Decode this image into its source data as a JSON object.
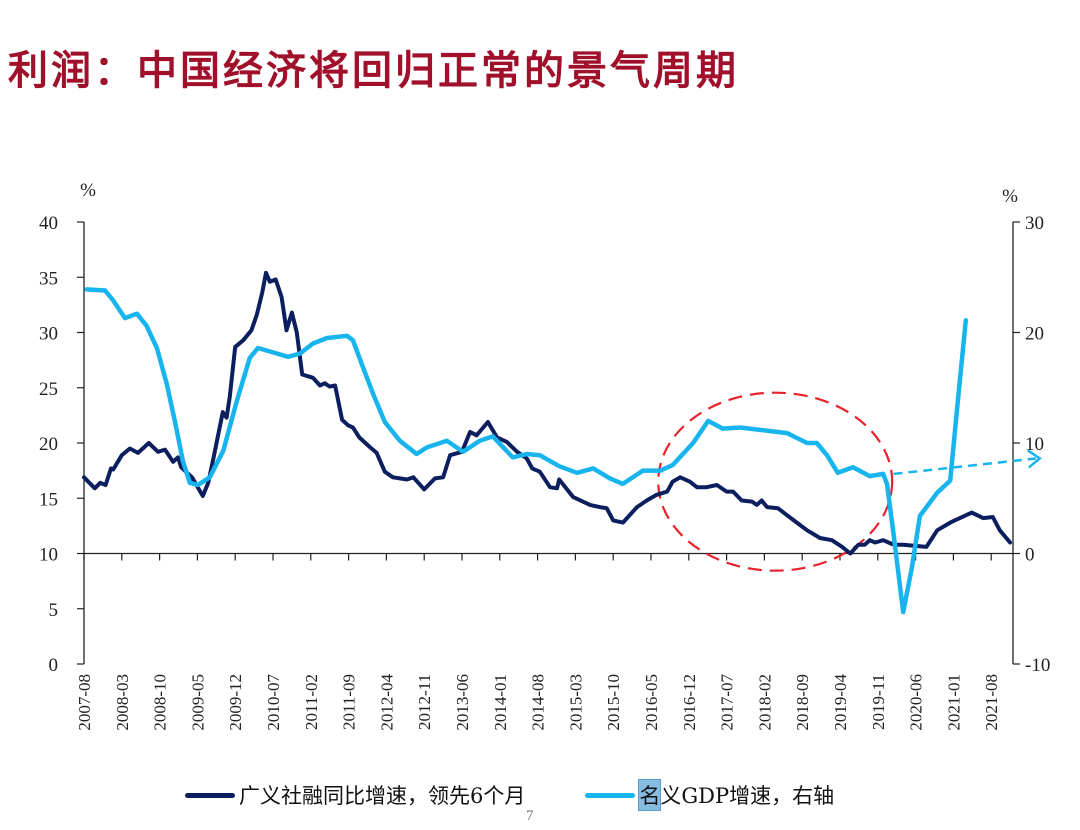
{
  "title": "利润：中国经济将回归正常的景气周期",
  "page_number": "7",
  "chart_data": {
    "type": "line",
    "title": "利润：中国经济将回归正常的景气周期",
    "x_unit": "months since 2007-08",
    "x_tick_labels": [
      "2007-08",
      "2008-03",
      "2008-10",
      "2009-05",
      "2009-12",
      "2010-07",
      "2011-02",
      "2011-09",
      "2012-04",
      "2012-11",
      "2013-06",
      "2014-01",
      "2014-08",
      "2015-03",
      "2015-10",
      "2016-05",
      "2016-12",
      "2017-07",
      "2018-02",
      "2018-09",
      "2019-04",
      "2019-11",
      "2020-06",
      "2021-01",
      "2021-08"
    ],
    "x_tick_step_months": 7,
    "x_range": [
      0,
      172
    ],
    "left_axis": {
      "unit": "%",
      "range": [
        0,
        40
      ],
      "ticks": [
        0,
        5,
        10,
        15,
        20,
        25,
        30,
        35,
        40
      ]
    },
    "right_axis": {
      "unit": "%",
      "range": [
        -10,
        30
      ],
      "ticks": [
        -10,
        0,
        10,
        20,
        30
      ]
    },
    "colors": {
      "credit": "#0B1F5E",
      "gdp": "#17B4EE",
      "annotation": "#E8222A",
      "title": "#A0102B"
    },
    "series": [
      {
        "name": "广义社融同比增速，领先6个月",
        "axis": "left",
        "points": [
          [
            0,
            16.9
          ],
          [
            2,
            15.9
          ],
          [
            3,
            16.4
          ],
          [
            4,
            16.2
          ],
          [
            5,
            17.7
          ],
          [
            5.4,
            17.6
          ],
          [
            7,
            18.9
          ],
          [
            8.5,
            19.5
          ],
          [
            10,
            19.1
          ],
          [
            12,
            20.0
          ],
          [
            13.7,
            19.2
          ],
          [
            15,
            19.4
          ],
          [
            16.5,
            18.3
          ],
          [
            17.4,
            18.7
          ],
          [
            18,
            17.8
          ],
          [
            20,
            16.9
          ],
          [
            22,
            15.2
          ],
          [
            23,
            16.4
          ],
          [
            24,
            18.7
          ],
          [
            25.7,
            22.8
          ],
          [
            26.4,
            22.3
          ],
          [
            27,
            24.2
          ],
          [
            28,
            28.7
          ],
          [
            29.5,
            29.3
          ],
          [
            31,
            30.2
          ],
          [
            32,
            31.6
          ],
          [
            33,
            33.6
          ],
          [
            33.7,
            35.4
          ],
          [
            34.4,
            34.6
          ],
          [
            35.5,
            34.8
          ],
          [
            36.6,
            33.2
          ],
          [
            37.5,
            30.2
          ],
          [
            38.5,
            31.8
          ],
          [
            39.4,
            30.0
          ],
          [
            40.4,
            26.2
          ],
          [
            42.4,
            25.9
          ],
          [
            43.7,
            25.2
          ],
          [
            44.6,
            25.4
          ],
          [
            45.5,
            25.1
          ],
          [
            46.5,
            25.2
          ],
          [
            47.8,
            22.1
          ],
          [
            48.9,
            21.6
          ],
          [
            49.8,
            21.4
          ],
          [
            51,
            20.5
          ],
          [
            53,
            19.6
          ],
          [
            54.2,
            19.1
          ],
          [
            55.7,
            17.4
          ],
          [
            57.2,
            16.9
          ],
          [
            58.5,
            16.8
          ],
          [
            59.8,
            16.7
          ],
          [
            61,
            16.9
          ],
          [
            63,
            15.8
          ],
          [
            65,
            16.8
          ],
          [
            66.5,
            16.9
          ],
          [
            67.8,
            18.9
          ],
          [
            70,
            19.2
          ],
          [
            71.5,
            21.0
          ],
          [
            72.7,
            20.7
          ],
          [
            74.8,
            21.9
          ],
          [
            76.5,
            20.5
          ],
          [
            78.3,
            20.1
          ],
          [
            80.2,
            19.2
          ],
          [
            82,
            18.6
          ],
          [
            83,
            17.7
          ],
          [
            84.4,
            17.4
          ],
          [
            86.3,
            16.0
          ],
          [
            87.6,
            15.9
          ],
          [
            88,
            16.7
          ],
          [
            90.6,
            15.1
          ],
          [
            93.7,
            14.4
          ],
          [
            95.5,
            14.2
          ],
          [
            96.8,
            14.1
          ],
          [
            98,
            13.0
          ],
          [
            99.8,
            12.8
          ],
          [
            102.4,
            14.2
          ],
          [
            104.2,
            14.8
          ],
          [
            106,
            15.3
          ],
          [
            108,
            15.6
          ],
          [
            109,
            16.5
          ],
          [
            110.4,
            16.9
          ],
          [
            112.2,
            16.5
          ],
          [
            113.5,
            16.0
          ],
          [
            115.3,
            16.0
          ],
          [
            117.2,
            16.2
          ],
          [
            119,
            15.6
          ],
          [
            120.2,
            15.6
          ],
          [
            121.8,
            14.8
          ],
          [
            123.7,
            14.7
          ],
          [
            124.6,
            14.4
          ],
          [
            125.5,
            14.8
          ],
          [
            126.5,
            14.2
          ],
          [
            128.5,
            14.1
          ],
          [
            130.1,
            13.5
          ],
          [
            132,
            12.8
          ],
          [
            133.9,
            12.1
          ],
          [
            136.3,
            11.4
          ],
          [
            138.5,
            11.2
          ],
          [
            140.4,
            10.6
          ],
          [
            141.9,
            10.0
          ],
          [
            143.4,
            10.8
          ],
          [
            144.6,
            10.8
          ],
          [
            145.5,
            11.2
          ],
          [
            146.5,
            11.0
          ],
          [
            148,
            11.2
          ],
          [
            149.9,
            10.8
          ],
          [
            151.7,
            10.8
          ],
          [
            156,
            10.6
          ],
          [
            158,
            12.1
          ],
          [
            160.4,
            12.8
          ],
          [
            162.2,
            13.2
          ],
          [
            164.4,
            13.7
          ],
          [
            166.5,
            13.2
          ],
          [
            168.3,
            13.3
          ],
          [
            169.6,
            12.1
          ],
          [
            171.5,
            11.0
          ]
        ]
      },
      {
        "name": "名义GDP增速，右轴",
        "axis": "right",
        "points": [
          [
            0.5,
            23.9
          ],
          [
            3.9,
            23.8
          ],
          [
            5.4,
            22.9
          ],
          [
            7.6,
            21.3
          ],
          [
            9.8,
            21.7
          ],
          [
            11.6,
            20.6
          ],
          [
            13.5,
            18.6
          ],
          [
            15.3,
            15.4
          ],
          [
            16.9,
            11.8
          ],
          [
            18.3,
            8.4
          ],
          [
            19.6,
            6.4
          ],
          [
            21.1,
            6.2
          ],
          [
            23.3,
            6.9
          ],
          [
            25.8,
            9.3
          ],
          [
            28.3,
            13.8
          ],
          [
            30.7,
            17.7
          ],
          [
            32.2,
            18.6
          ],
          [
            35,
            18.2
          ],
          [
            37.8,
            17.8
          ],
          [
            40,
            18.1
          ],
          [
            42.4,
            19.0
          ],
          [
            45,
            19.5
          ],
          [
            48.7,
            19.7
          ],
          [
            49.8,
            19.3
          ],
          [
            51.7,
            16.8
          ],
          [
            53.5,
            14.5
          ],
          [
            55.7,
            11.9
          ],
          [
            58.5,
            10.2
          ],
          [
            61.6,
            9.0
          ],
          [
            63.5,
            9.6
          ],
          [
            67.2,
            10.2
          ],
          [
            70.2,
            9.2
          ],
          [
            73.3,
            10.2
          ],
          [
            75.7,
            10.6
          ],
          [
            79.4,
            8.7
          ],
          [
            82,
            9.0
          ],
          [
            84.4,
            8.9
          ],
          [
            88,
            7.9
          ],
          [
            91.3,
            7.3
          ],
          [
            94.3,
            7.7
          ],
          [
            97.4,
            6.8
          ],
          [
            99.8,
            6.3
          ],
          [
            103.5,
            7.5
          ],
          [
            106.7,
            7.5
          ],
          [
            109,
            8.0
          ],
          [
            112.8,
            10.0
          ],
          [
            115.6,
            12.0
          ],
          [
            118.3,
            11.3
          ],
          [
            121.5,
            11.4
          ],
          [
            130.2,
            10.9
          ],
          [
            133.9,
            10.0
          ],
          [
            135.7,
            10.0
          ],
          [
            137.6,
            8.9
          ],
          [
            139.6,
            7.3
          ],
          [
            142.4,
            7.8
          ],
          [
            145.5,
            7.0
          ],
          [
            148,
            7.2
          ],
          [
            148.7,
            6.3
          ],
          [
            149.9,
            1.8
          ],
          [
            151.7,
            -5.3
          ],
          [
            153.3,
            -1.3
          ],
          [
            154.8,
            3.4
          ],
          [
            158,
            5.5
          ],
          [
            160.4,
            6.6
          ],
          [
            161.7,
            13.2
          ],
          [
            163.3,
            21.1
          ]
        ]
      }
    ],
    "annotations": {
      "ellipse": {
        "style": "dashed red",
        "center": [
          128,
          16.5
        ],
        "note": "highlighted period 2016-2020"
      },
      "arrow": {
        "style": "dashed light blue",
        "from": [
          149.9,
          7.2
        ],
        "to": [
          177,
          8.6
        ],
        "axis": "right"
      }
    },
    "legend": {
      "placement": "bottom",
      "entries": [
        "广义社融同比增速，领先6个月",
        "名义GDP增速，右轴"
      ]
    },
    "legend_highlight_char": "名",
    "legend_rest_gdp": "义GDP增速，右轴"
  }
}
